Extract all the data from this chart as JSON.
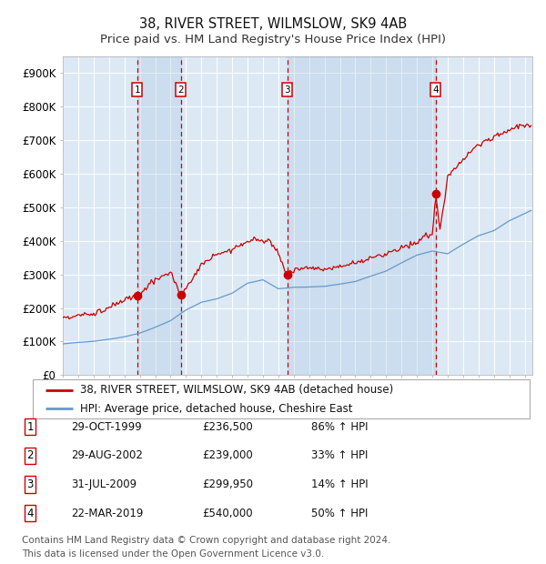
{
  "title": "38, RIVER STREET, WILMSLOW, SK9 4AB",
  "subtitle": "Price paid vs. HM Land Registry's House Price Index (HPI)",
  "ylim": [
    0,
    950000
  ],
  "yticks": [
    0,
    100000,
    200000,
    300000,
    400000,
    500000,
    600000,
    700000,
    800000,
    900000
  ],
  "ytick_labels": [
    "£0",
    "£100K",
    "£200K",
    "£300K",
    "£400K",
    "£500K",
    "£600K",
    "£700K",
    "£800K",
    "£900K"
  ],
  "background_color": "#ffffff",
  "plot_bg_color": "#dce9f5",
  "grid_color": "#ffffff",
  "red_line_color": "#cc0000",
  "blue_line_color": "#6699cc",
  "sale_points": [
    {
      "year": 1999.83,
      "price": 236500,
      "label": "1"
    },
    {
      "year": 2002.66,
      "price": 239000,
      "label": "2"
    },
    {
      "year": 2009.58,
      "price": 299950,
      "label": "3"
    },
    {
      "year": 2019.22,
      "price": 540000,
      "label": "4"
    }
  ],
  "legend_red_label": "38, RIVER STREET, WILMSLOW, SK9 4AB (detached house)",
  "legend_blue_label": "HPI: Average price, detached house, Cheshire East",
  "table_rows": [
    {
      "num": "1",
      "date": "29-OCT-1999",
      "price": "£236,500",
      "change": "86% ↑ HPI"
    },
    {
      "num": "2",
      "date": "29-AUG-2002",
      "price": "£239,000",
      "change": "33% ↑ HPI"
    },
    {
      "num": "3",
      "date": "31-JUL-2009",
      "price": "£299,950",
      "change": "14% ↑ HPI"
    },
    {
      "num": "4",
      "date": "22-MAR-2019",
      "price": "£540,000",
      "change": "50% ↑ HPI"
    }
  ],
  "footnote_line1": "Contains HM Land Registry data © Crown copyright and database right 2024.",
  "footnote_line2": "This data is licensed under the Open Government Licence v3.0.",
  "hpi_key_years": [
    1995,
    1996,
    1997,
    1998,
    1999,
    2000,
    2001,
    2002,
    2003,
    2004,
    2005,
    2006,
    2007,
    2008,
    2009,
    2010,
    2011,
    2012,
    2013,
    2014,
    2015,
    2016,
    2017,
    2018,
    2019,
    2020,
    2021,
    2022,
    2023,
    2024,
    2025.4
  ],
  "hpi_key_values": [
    93000,
    97000,
    101000,
    107000,
    115000,
    126000,
    143000,
    163000,
    195000,
    218000,
    228000,
    245000,
    275000,
    285000,
    258000,
    262000,
    263000,
    265000,
    271000,
    279000,
    295000,
    310000,
    335000,
    358000,
    370000,
    362000,
    390000,
    415000,
    430000,
    460000,
    490000
  ],
  "prop_key_years": [
    1995,
    1997,
    1999,
    1999.83,
    2001,
    2002,
    2002.66,
    2004,
    2005,
    2006,
    2007,
    2007.5,
    2008,
    2008.5,
    2009,
    2009.58,
    2010,
    2011,
    2012,
    2013,
    2014,
    2015,
    2016,
    2017,
    2018,
    2018.5,
    2019,
    2019.22,
    2019.5,
    2020,
    2020.5,
    2021,
    2021.5,
    2022,
    2022.5,
    2023,
    2023.5,
    2024,
    2024.5,
    2025.3
  ],
  "prop_key_values": [
    172000,
    183000,
    222000,
    236500,
    285000,
    305000,
    239000,
    325000,
    360000,
    375000,
    400000,
    407000,
    395000,
    405000,
    360000,
    299950,
    315000,
    320000,
    315000,
    322000,
    335000,
    348000,
    362000,
    378000,
    395000,
    415000,
    415000,
    540000,
    430000,
    590000,
    620000,
    640000,
    670000,
    685000,
    700000,
    710000,
    720000,
    730000,
    740000,
    745000
  ],
  "title_fontsize": 10.5,
  "subtitle_fontsize": 9.5,
  "axis_fontsize": 8.5,
  "legend_fontsize": 8.5,
  "table_fontsize": 8.5,
  "footnote_fontsize": 7.5
}
